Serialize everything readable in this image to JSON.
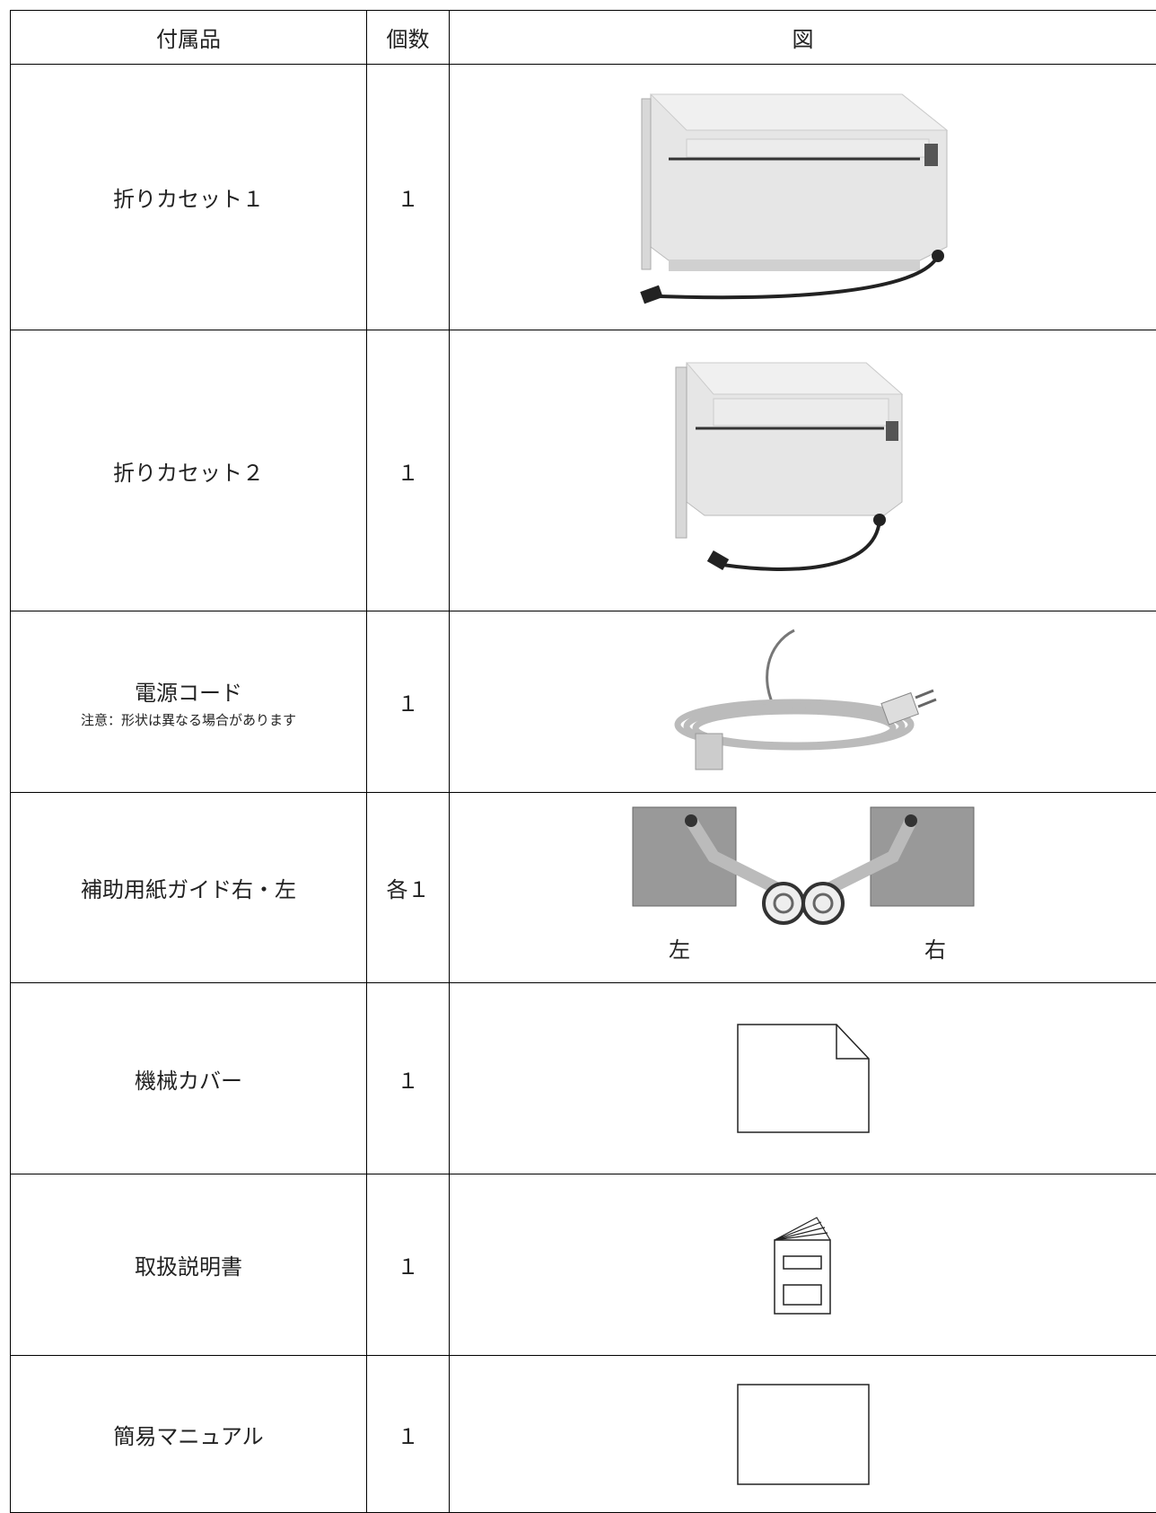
{
  "table": {
    "header": [
      "付属品",
      "個数",
      "図"
    ],
    "rows": [
      {
        "item": "折りカセット１",
        "count": "１"
      },
      {
        "item": "折りカセット２",
        "count": "１"
      },
      {
        "item": "電源コード",
        "note": "注意：形状は異なる場合があります",
        "count": "１"
      },
      {
        "item": "補助用紙ガイド右・左",
        "count": "各１",
        "figure_labels": [
          "左",
          "右"
        ]
      },
      {
        "item": "機械カバー",
        "count": "１"
      },
      {
        "item": "取扱説明書",
        "count": "１"
      },
      {
        "item": "簡易マニュアル",
        "count": "１"
      }
    ]
  }
}
